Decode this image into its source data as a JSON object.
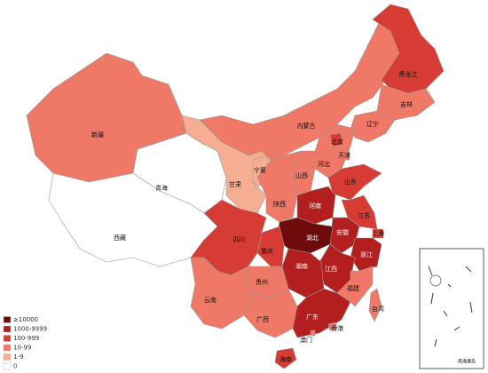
{
  "legend": [
    {
      "label": "≥10000",
      "color": "#6e0b0b"
    },
    {
      "label": "1000-9999",
      "color": "#b31f1f"
    },
    {
      "label": "100-999",
      "color": "#d63c34"
    },
    {
      "label": "10-99",
      "color": "#ef7866"
    },
    {
      "label": "1-9",
      "color": "#f6ae92"
    },
    {
      "label": "0",
      "color": "#ffffff"
    }
  ],
  "regions": [
    {
      "name": "新疆",
      "color": "#ef7866"
    },
    {
      "name": "西藏",
      "color": "#ffffff"
    },
    {
      "name": "青海",
      "color": "#ffffff"
    },
    {
      "name": "甘肃",
      "color": "#f6ae92"
    },
    {
      "name": "宁夏",
      "color": "#f6ae92"
    },
    {
      "name": "内蒙古",
      "color": "#ef7866"
    },
    {
      "name": "黑龙江",
      "color": "#d63c34"
    },
    {
      "name": "吉林",
      "color": "#ef7866"
    },
    {
      "name": "辽宁",
      "color": "#ef7866"
    },
    {
      "name": "河北",
      "color": "#ef7866"
    },
    {
      "name": "北京",
      "color": "#d63c34"
    },
    {
      "name": "天津",
      "color": "#ef7866"
    },
    {
      "name": "山西",
      "color": "#ef7866"
    },
    {
      "name": "山东",
      "color": "#d63c34"
    },
    {
      "name": "陕西",
      "color": "#ef7866"
    },
    {
      "name": "河南",
      "color": "#b31f1f"
    },
    {
      "name": "江苏",
      "color": "#d63c34"
    },
    {
      "name": "上海",
      "color": "#d63c34"
    },
    {
      "name": "安徽",
      "color": "#b31f1f"
    },
    {
      "name": "湖北",
      "color": "#6e0b0b"
    },
    {
      "name": "浙江",
      "color": "#b31f1f"
    },
    {
      "name": "江西",
      "color": "#b31f1f"
    },
    {
      "name": "湖南",
      "color": "#b31f1f"
    },
    {
      "name": "重庆",
      "color": "#d63c34"
    },
    {
      "name": "四川",
      "color": "#d63c34"
    },
    {
      "name": "贵州",
      "color": "#ef7866"
    },
    {
      "name": "云南",
      "color": "#ef7866"
    },
    {
      "name": "广西",
      "color": "#ef7866"
    },
    {
      "name": "广东",
      "color": "#b31f1f"
    },
    {
      "name": "福建",
      "color": "#ef7866"
    },
    {
      "name": "台湾",
      "color": "#ef7866"
    },
    {
      "name": "香港",
      "color": "#ef7866"
    },
    {
      "name": "澳门",
      "color": "#ef7866"
    },
    {
      "name": "海南",
      "color": "#d63c34"
    }
  ],
  "inset_label": "南海诸岛"
}
